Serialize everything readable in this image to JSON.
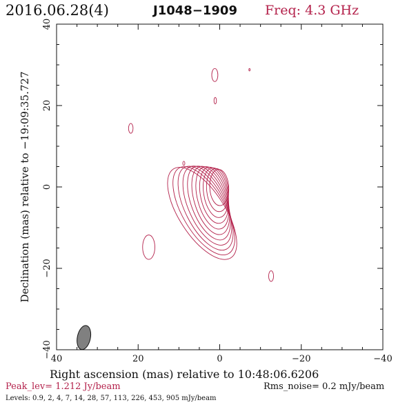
{
  "header": {
    "date": "2016.06.28(4)",
    "source": "J1048−1909",
    "frequency": "Freq: 4.3 GHz"
  },
  "footer": {
    "peak": "Peak_lev=  1.212 Jy/beam",
    "rms": "Rms_noise=  0.2 mJy/beam",
    "levels": "Levels: 0.9,   2,   4,   7,  14,  28,  57, 113, 226, 453, 905 mJy/beam"
  },
  "colors": {
    "contour": "#b3204a",
    "axes": "#111111",
    "beam_fill": "#808080"
  },
  "chart_data": {
    "type": "contour",
    "xlabel": "Right ascension (mas) relative to 10:48:06.6206",
    "ylabel": "Declination (mas) relative to −19:09:35.727",
    "xlim": [
      40,
      -40
    ],
    "ylim": [
      -40,
      40
    ],
    "x_ticks": [
      40,
      20,
      0,
      -20,
      -40
    ],
    "y_ticks": [
      -40,
      -20,
      0,
      20,
      40
    ],
    "x_tick_labels": [
      "40",
      "20",
      "0",
      "−20",
      "−40"
    ],
    "y_tick_labels": [
      "−40",
      "−20",
      "0",
      "20",
      "40"
    ],
    "contour_levels_mJy": [
      0.9,
      2,
      4,
      7,
      14,
      28,
      57,
      113,
      226,
      453,
      905
    ],
    "peak_Jy_per_beam": 1.212,
    "rms_noise_mJy_per_beam": 0.2,
    "beam": {
      "center": [
        33.3,
        -37
      ],
      "major_mas": 4.6,
      "minor_mas": 2.0,
      "pa_deg": 12
    },
    "core_peak": [
      -0.3,
      0.5
    ],
    "isolated_features": [
      {
        "x": 1.2,
        "y": 27.5,
        "rx": 0.75,
        "ry": 1.6
      },
      {
        "x": 1.1,
        "y": 21.2,
        "rx": 0.3,
        "ry": 0.8
      },
      {
        "x": 21.8,
        "y": 14.4,
        "rx": 0.55,
        "ry": 1.2
      },
      {
        "x": 8.8,
        "y": 5.8,
        "rx": 0.25,
        "ry": 0.5
      },
      {
        "x": -7.3,
        "y": 28.8,
        "rx": 0.15,
        "ry": 0.3
      },
      {
        "x": 17.4,
        "y": -14.8,
        "rx": 1.5,
        "ry": 3.0
      },
      {
        "x": -12.6,
        "y": -21.9,
        "rx": 0.6,
        "ry": 1.3
      }
    ]
  }
}
